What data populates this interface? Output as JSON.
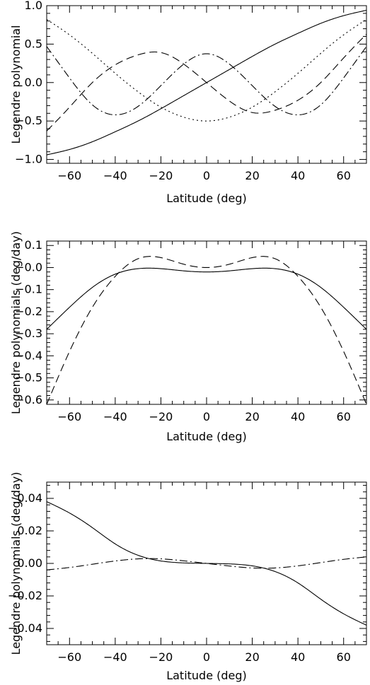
{
  "chart_data": [
    {
      "type": "line",
      "xlabel": "Latitude (deg)",
      "ylabel": "Legendre polynomial",
      "xlim": [
        -70,
        70
      ],
      "ylim": [
        -1.05,
        1.0
      ],
      "xticks": [
        -60,
        -40,
        -20,
        0,
        20,
        40,
        60
      ],
      "xtick_labels": [
        "−60",
        "−40",
        "−20",
        "0",
        "20",
        "40",
        "60"
      ],
      "yticks": [
        -1.0,
        -0.5,
        0.0,
        0.5,
        1.0
      ],
      "ytick_labels": [
        "−1.0",
        "−0.5",
        "0.0",
        "0.5",
        "1.0"
      ],
      "grid": false,
      "series": [
        {
          "style": "solid",
          "x": [
            -70,
            -60,
            -50,
            -40,
            -30,
            -20,
            -10,
            0,
            10,
            20,
            30,
            40,
            50,
            60,
            70
          ],
          "y": [
            -0.94,
            -0.87,
            -0.77,
            -0.64,
            -0.5,
            -0.34,
            -0.17,
            0.0,
            0.17,
            0.34,
            0.5,
            0.64,
            0.77,
            0.87,
            0.94
          ]
        },
        {
          "style": "dotted",
          "x": [
            -70,
            -60,
            -50,
            -40,
            -30,
            -20,
            -10,
            0,
            10,
            20,
            30,
            40,
            50,
            60,
            70
          ],
          "y": [
            0.82,
            0.62,
            0.38,
            0.12,
            -0.12,
            -0.32,
            -0.45,
            -0.5,
            -0.45,
            -0.32,
            -0.12,
            0.12,
            0.38,
            0.62,
            0.82
          ]
        },
        {
          "style": "dashed",
          "x": [
            -70,
            -60,
            -50,
            -40,
            -30,
            -20,
            -10,
            0,
            10,
            20,
            30,
            40,
            50,
            60,
            70
          ],
          "y": [
            -0.63,
            -0.32,
            0.0,
            0.23,
            0.36,
            0.39,
            0.24,
            0.0,
            -0.24,
            -0.39,
            -0.36,
            -0.23,
            0.0,
            0.32,
            0.63
          ]
        },
        {
          "style": "dashdot",
          "x": [
            -70,
            -60,
            -50,
            -40,
            -30,
            -20,
            -10,
            0,
            10,
            20,
            30,
            40,
            50,
            60,
            70
          ],
          "y": [
            0.47,
            0.06,
            -0.29,
            -0.42,
            -0.31,
            -0.04,
            0.24,
            0.375,
            0.24,
            -0.04,
            -0.31,
            -0.42,
            -0.29,
            0.06,
            0.47
          ]
        }
      ]
    },
    {
      "type": "line",
      "xlabel": "Latitude (deg)",
      "ylabel": "Legendre polynomials (deg/day)",
      "xlim": [
        -70,
        70
      ],
      "ylim": [
        -0.62,
        0.12
      ],
      "xticks": [
        -60,
        -40,
        -20,
        0,
        20,
        40,
        60
      ],
      "xtick_labels": [
        "−60",
        "−40",
        "−20",
        "0",
        "20",
        "40",
        "60"
      ],
      "yticks": [
        -0.6,
        -0.5,
        -0.4,
        -0.3,
        -0.2,
        -0.1,
        0.0,
        0.1
      ],
      "ytick_labels": [
        "−0.6",
        "−0.5",
        "−0.4",
        "−0.3",
        "−0.2",
        "−0.1",
        "−0.0",
        "0.1"
      ],
      "grid": false,
      "series": [
        {
          "style": "solid",
          "x": [
            -70,
            -60,
            -50,
            -40,
            -30,
            -20,
            -10,
            0,
            10,
            20,
            30,
            40,
            50,
            60,
            70
          ],
          "y": [
            -0.28,
            -0.18,
            -0.09,
            -0.03,
            -0.005,
            -0.005,
            -0.015,
            -0.02,
            -0.015,
            -0.005,
            -0.005,
            -0.03,
            -0.09,
            -0.18,
            -0.28
          ]
        },
        {
          "style": "dashed",
          "x": [
            -70,
            -60,
            -50,
            -40,
            -30,
            -20,
            -10,
            0,
            10,
            20,
            30,
            40,
            50,
            60,
            70
          ],
          "y": [
            -0.62,
            -0.38,
            -0.18,
            -0.04,
            0.04,
            0.045,
            0.015,
            0.0,
            0.015,
            0.045,
            0.04,
            -0.04,
            -0.18,
            -0.38,
            -0.62
          ]
        }
      ]
    },
    {
      "type": "line",
      "xlabel": "Latitude (deg)",
      "ylabel": "Legendre polynomials (deg/day)",
      "xlim": [
        -70,
        70
      ],
      "ylim": [
        -0.05,
        0.05
      ],
      "xticks": [
        -60,
        -40,
        -20,
        0,
        20,
        40,
        60
      ],
      "xtick_labels": [
        "−60",
        "−40",
        "−20",
        "0",
        "20",
        "40",
        "60"
      ],
      "yticks": [
        -0.04,
        -0.02,
        0.0,
        0.02,
        0.04
      ],
      "ytick_labels": [
        "−0.04",
        "−0.02",
        "0.00",
        "0.02",
        "0.04"
      ],
      "grid": false,
      "series": [
        {
          "style": "solid",
          "x": [
            -70,
            -60,
            -50,
            -40,
            -30,
            -20,
            -10,
            0,
            10,
            20,
            30,
            40,
            50,
            60,
            70
          ],
          "y": [
            0.038,
            0.031,
            0.022,
            0.012,
            0.005,
            0.0015,
            0.0003,
            0.0,
            -0.0003,
            -0.0015,
            -0.005,
            -0.012,
            -0.022,
            -0.031,
            -0.038
          ]
        },
        {
          "style": "dashdot",
          "x": [
            -70,
            -60,
            -50,
            -40,
            -30,
            -20,
            -10,
            0,
            10,
            20,
            30,
            40,
            50,
            60,
            70
          ],
          "y": [
            -0.004,
            -0.0025,
            -0.0005,
            0.0015,
            0.0028,
            0.0028,
            0.0016,
            0.0,
            -0.0016,
            -0.0028,
            -0.0028,
            -0.0015,
            0.0005,
            0.0025,
            0.004
          ]
        }
      ]
    }
  ]
}
